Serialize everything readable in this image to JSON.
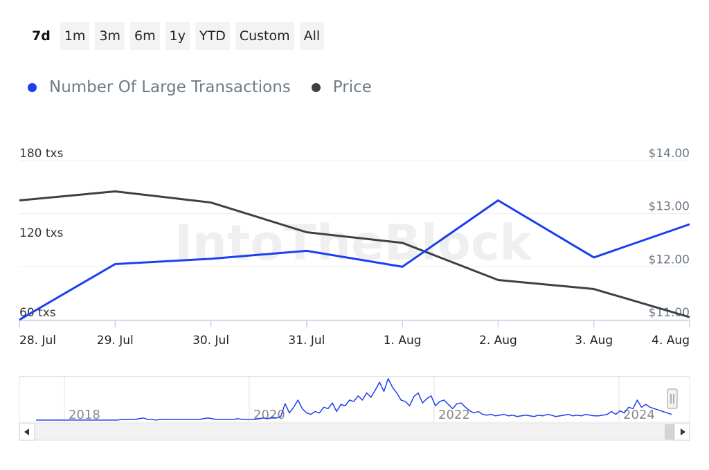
{
  "range_selector": {
    "buttons": [
      "7d",
      "1m",
      "3m",
      "6m",
      "1y",
      "YTD",
      "Custom",
      "All"
    ],
    "active": "7d"
  },
  "watermark": "IntoTheBlock",
  "colors": {
    "large_transactions": "#1a3ff0",
    "price": "#3d4045",
    "grid": "#eeeeee",
    "axis": "#c7d3ea"
  },
  "chart_data": [
    {
      "type": "line",
      "x": [
        "28. Jul",
        "29. Jul",
        "30. Jul",
        "31. Jul",
        "1. Aug",
        "2. Aug",
        "3. Aug",
        "4. Aug"
      ],
      "series": [
        {
          "name": "Number Of Large Transactions",
          "axis": "left",
          "values": [
            60,
            102,
            106,
            112,
            100,
            150,
            107,
            132
          ]
        },
        {
          "name": "Price",
          "axis": "right",
          "values": [
            13.25,
            13.42,
            13.21,
            12.65,
            12.45,
            11.75,
            11.58,
            11.05
          ]
        }
      ],
      "yaxis_left": {
        "ticks": [
          "60 txs",
          "120 txs",
          "180 txs"
        ],
        "range": [
          60,
          180
        ]
      },
      "yaxis_right": {
        "ticks": [
          "$11.00",
          "$12.00",
          "$13.00",
          "$14.00"
        ],
        "range": [
          11,
          14
        ]
      },
      "grid": true,
      "legend_position": "top-left"
    },
    {
      "type": "area",
      "role": "navigator",
      "tick_labels": [
        "2018",
        "2020",
        "2022",
        "2024"
      ],
      "series": [
        {
          "values": [
            2,
            2,
            2,
            2,
            2,
            2,
            2,
            2,
            2,
            2,
            2,
            2,
            2,
            2,
            2,
            2,
            2,
            2,
            2,
            2,
            3,
            3,
            3,
            3,
            4,
            5,
            3,
            3,
            2,
            3,
            3,
            3,
            3,
            3,
            3,
            3,
            3,
            3,
            3,
            4,
            5,
            4,
            3,
            3,
            3,
            3,
            3,
            4,
            3,
            3,
            3,
            3,
            4,
            5,
            4,
            6,
            5,
            7,
            25,
            12,
            20,
            30,
            18,
            12,
            10,
            14,
            12,
            20,
            18,
            26,
            14,
            24,
            22,
            30,
            28,
            36,
            30,
            40,
            34,
            44,
            55,
            42,
            60,
            48,
            40,
            30,
            28,
            22,
            35,
            40,
            26,
            32,
            36,
            22,
            28,
            30,
            24,
            18,
            25,
            26,
            20,
            15,
            12,
            14,
            10,
            9,
            10,
            8,
            9,
            10,
            8,
            9,
            7,
            8,
            9,
            8,
            7,
            9,
            8,
            10,
            9,
            7,
            8,
            9,
            10,
            8,
            9,
            8,
            10,
            9,
            8,
            8,
            9,
            10,
            14,
            10,
            15,
            12,
            20,
            18,
            30,
            20,
            24,
            20,
            18,
            16,
            14,
            12,
            10
          ]
        }
      ]
    }
  ]
}
